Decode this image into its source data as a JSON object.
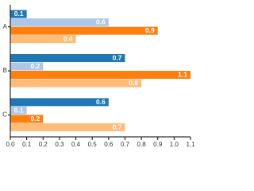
{
  "chart_data": {
    "type": "bar",
    "orientation": "horizontal",
    "categories": [
      "A",
      "B",
      "C"
    ],
    "series": [
      {
        "color": "#1f77b4",
        "values": [
          0.1,
          0.7,
          0.6
        ]
      },
      {
        "color": "#aec7e8",
        "values": [
          0.6,
          0.2,
          0.1
        ]
      },
      {
        "color": "#ff7f0e",
        "values": [
          0.9,
          1.1,
          0.2
        ]
      },
      {
        "color": "#ffbb78",
        "values": [
          0.4,
          0.8,
          0.7
        ]
      }
    ],
    "xlim": [
      0,
      1.1
    ],
    "xticks": [
      {
        "value": 0,
        "label": "0.0"
      },
      0.1,
      0.2,
      0.3,
      0.4,
      0.5,
      0.6,
      0.7,
      0.8,
      0.9,
      {
        "value": 1,
        "label": "1.0"
      },
      1.1
    ]
  }
}
